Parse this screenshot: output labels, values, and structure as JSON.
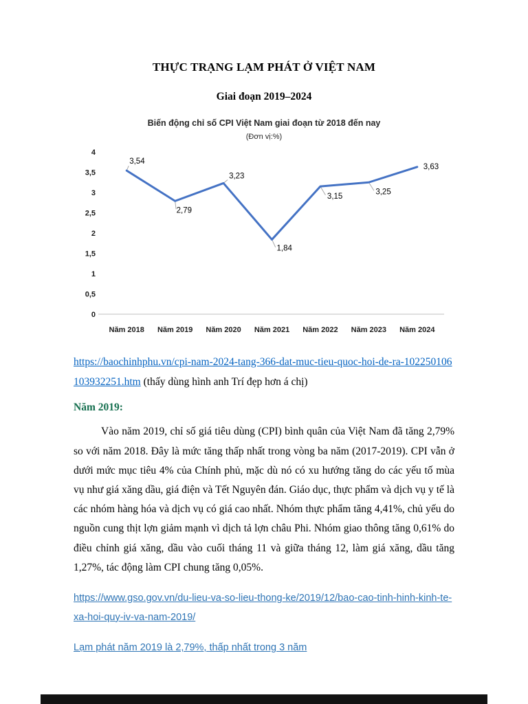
{
  "document": {
    "title": "THỰC TRẠNG LẠM PHÁT Ở VIỆT NAM",
    "subtitle": "Giai đoạn 2019–2024"
  },
  "chart_data": {
    "type": "line",
    "title": "Biến động chỉ số CPI Việt Nam giai đoạn từ 2018 đến nay",
    "unit_note": "(Đơn vị:%)",
    "categories": [
      "Năm 2018",
      "Năm 2019",
      "Năm 2020",
      "Năm 2021",
      "Năm 2022",
      "Năm 2023",
      "Năm 2024"
    ],
    "values": [
      3.54,
      2.79,
      3.23,
      1.84,
      3.15,
      3.25,
      3.63
    ],
    "data_labels": [
      "3,54",
      "2,79",
      "3,23",
      "1,84",
      "3,15",
      "3,25",
      "3,63"
    ],
    "ylim": [
      0,
      4
    ],
    "ytick_values": [
      0,
      0.5,
      1,
      1.5,
      2,
      2.5,
      3,
      3.5,
      4
    ],
    "ytick_labels": [
      "0",
      "0,5",
      "1",
      "1,5",
      "2",
      "2,5",
      "3",
      "3,5",
      "4"
    ],
    "grid": false,
    "legend": false,
    "line_color": "#4472C4",
    "axis_color": "#BFBFBF"
  },
  "source_link": {
    "url_text": "https://baochinhphu.vn/cpi-nam-2024-tang-366-dat-muc-tieu-quoc-hoi-de-ra-102250106103932251.htm",
    "note": " (thấy dùng hình anh Trí đẹp hơn á chị)"
  },
  "section_2019": {
    "heading": "Năm 2019:",
    "heading_color": "#156f4f",
    "paragraph": "Vào năm 2019, chỉ số giá tiêu dùng (CPI) bình quân của Việt Nam đã tăng 2,79% so với năm 2018. Đây là mức tăng thấp nhất trong vòng ba năm (2017-2019). CPI vẫn ở dưới mức mục tiêu 4% của Chính phủ, mặc dù nó có xu hướng tăng do các yếu tố mùa vụ như giá xăng dầu, giá điện và Tết Nguyên đán. Giáo dục, thực phẩm và dịch vụ y tế là các nhóm hàng hóa và dịch vụ có giá cao nhất. Nhóm thực phẩm tăng 4,41%, chủ yếu do nguồn cung thịt lợn giảm mạnh vì dịch tả lợn châu Phi. Nhóm giao thông tăng 0,61% do điều chỉnh giá xăng, dầu vào cuối tháng 11 và giữa tháng 12, làm giá xăng, dầu tăng 1,27%, tác động làm CPI chung tăng 0,05%."
  },
  "gso_link": {
    "text": "https://www.gso.gov.vn/du-lieu-va-so-lieu-thong-ke/2019/12/bao-cao-tinh-hinh-kinh-te-xa-hoi-quy-iv-va-nam-2019/"
  },
  "inflation_link": {
    "text": "Lạm phát năm 2019 là 2,79%, thấp nhất trong 3 năm"
  },
  "colors": {
    "hyperlink": "#0563C1",
    "hyperlink_alt": "#2E74B5"
  }
}
